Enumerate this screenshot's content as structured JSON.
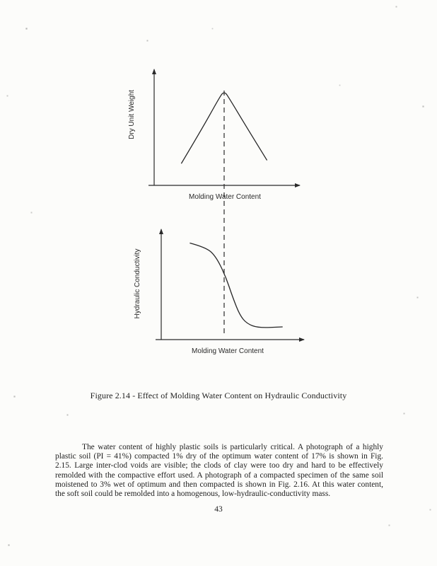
{
  "figure": {
    "caption": "Figure 2.14 - Effect of Molding Water Content on Hydraulic Conductivity",
    "top_chart": {
      "ylabel": "Dry Unit Weight",
      "xlabel": "Molding Water Content"
    },
    "bottom_chart": {
      "ylabel": "Hydraulic Conductivity",
      "xlabel": "Molding Water Content"
    }
  },
  "body_text": {
    "paragraph": "The water content of highly plastic soils is particularly critical.  A photograph of a highly plastic soil (PI = 41%) compacted 1% dry of the optimum water content of 17% is shown in Fig. 2.15.  Large inter-clod voids are visible; the clods of clay were too dry and hard to be effectively remolded with the compactive effort used.  A photograph of a compacted specimen of the same soil moistened to 3% wet of optimum and then compacted is shown in Fig. 2.16.  At this water content, the soft soil could be remolded into a homogenous, low-hydraulic-conductivity mass."
  },
  "page_number": "43",
  "ink_color": "#262626",
  "chart_data": [
    {
      "type": "line",
      "name": "compaction-curve",
      "title": "",
      "xlabel": "Molding Water Content",
      "ylabel": "Dry Unit Weight",
      "tick_labels": "none - schematic sketch with arrowhead axes",
      "points": [
        [
          0.19,
          0.2
        ],
        [
          0.34,
          0.53
        ],
        [
          0.45,
          0.79
        ],
        [
          0.49,
          0.87
        ],
        [
          0.53,
          0.79
        ],
        [
          0.64,
          0.55
        ],
        [
          0.79,
          0.23
        ]
      ],
      "annotations": [
        {
          "type": "dashed-vertical-line",
          "x": 0.49,
          "meaning": "optimum molding water content, aligned through both charts"
        }
      ]
    },
    {
      "type": "line",
      "name": "hydraulic-conductivity-curve",
      "title": "",
      "xlabel": "Molding Water Content",
      "ylabel": "Hydraulic Conductivity",
      "tick_labels": "none - schematic sketch with arrowhead axes",
      "points": [
        [
          0.2,
          0.91
        ],
        [
          0.31,
          0.87
        ],
        [
          0.38,
          0.79
        ],
        [
          0.45,
          0.6
        ],
        [
          0.5,
          0.4
        ],
        [
          0.55,
          0.23
        ],
        [
          0.6,
          0.15
        ],
        [
          0.68,
          0.11
        ],
        [
          0.85,
          0.12
        ]
      ]
    }
  ]
}
